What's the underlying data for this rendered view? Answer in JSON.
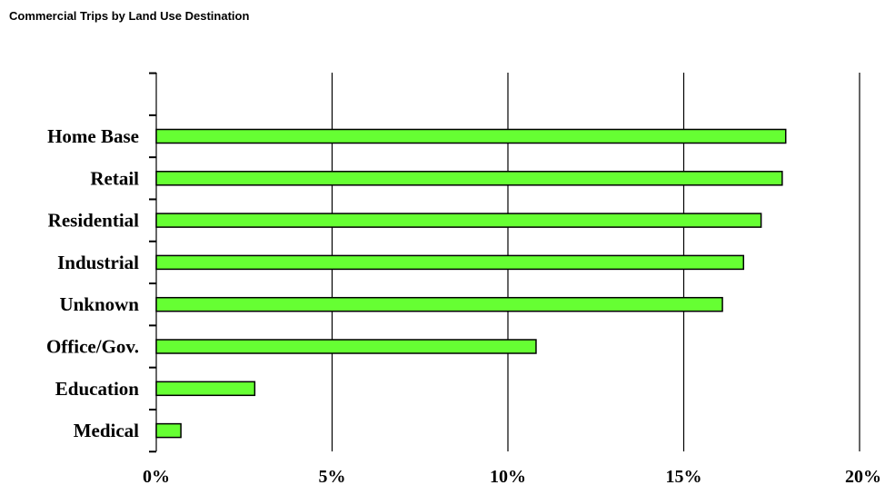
{
  "chart_data": {
    "type": "bar",
    "orientation": "horizontal",
    "title": "Commercial Trips by Land Use Destination",
    "categories": [
      "Home Base",
      "Retail",
      "Residential",
      "Industrial",
      "Unknown",
      "Office/Gov.",
      "Education",
      "Medical"
    ],
    "values": [
      17.9,
      17.8,
      17.2,
      16.7,
      16.1,
      10.8,
      2.8,
      0.7
    ],
    "x_tick_labels": [
      "0%",
      "5%",
      "10%",
      "15%",
      "20%"
    ],
    "x_ticks": [
      0,
      5,
      10,
      15,
      20
    ],
    "xlim": [
      0,
      20
    ],
    "xlabel": "",
    "ylabel": "",
    "unit": "%",
    "grid": "vertical",
    "legend": "none",
    "bar_color": "#66ff33",
    "bar_outline_color": "#000000"
  }
}
